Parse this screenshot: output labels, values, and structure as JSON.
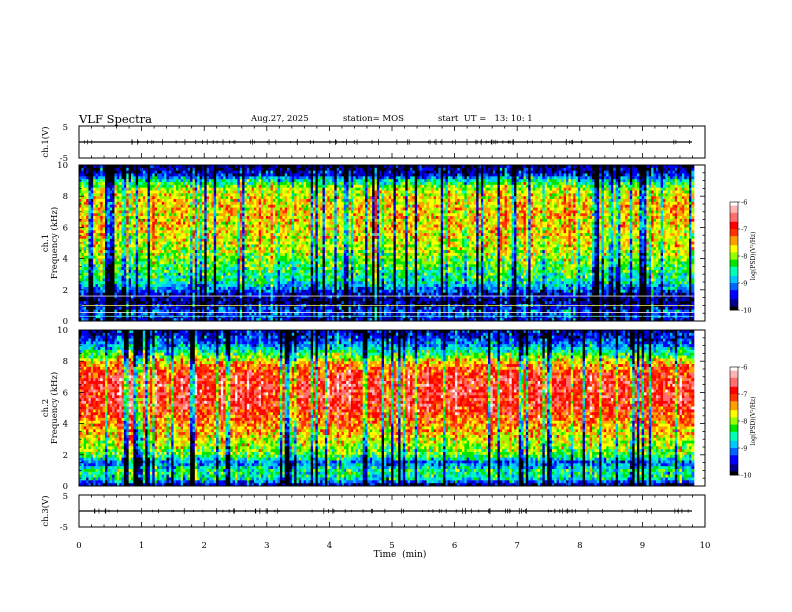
{
  "header": {
    "title": "VLF Spectra",
    "date": "Aug.27, 2025",
    "station": "station= MOS",
    "start_ut": "start  UT =   13: 10: 1"
  },
  "chart_data": [
    {
      "type": "line",
      "id": "ch1-voltage",
      "ylabel": "ch.1(V)",
      "ylim": [
        -5,
        5
      ],
      "y_ticks": [
        5,
        -5
      ],
      "baseline_value": 0,
      "x": [
        0,
        10
      ],
      "values": [
        0,
        0
      ]
    },
    {
      "type": "heatmap",
      "id": "ch1-spectrogram",
      "ylabel_channel": "ch.1",
      "ylabel": "Frequency (kHz)",
      "ylim": [
        0,
        10
      ],
      "y_ticks": [
        0,
        2,
        4,
        6,
        8,
        10
      ],
      "xlim": [
        0,
        10
      ],
      "data_end_min": 9.82,
      "colorbar": {
        "label": "log(PSD)(V²/Hz)",
        "range": [
          -10,
          -6
        ],
        "ticks": [
          -6,
          -7,
          -8,
          -9,
          -10
        ]
      },
      "mean_log_psd_profile": [
        {
          "f": 0.0,
          "v": -9.6
        },
        {
          "f": 0.6,
          "v": -9.2
        },
        {
          "f": 1.2,
          "v": -9.8
        },
        {
          "f": 1.8,
          "v": -9.4
        },
        {
          "f": 2.5,
          "v": -8.6
        },
        {
          "f": 3.5,
          "v": -8.3
        },
        {
          "f": 4.5,
          "v": -7.9
        },
        {
          "f": 5.5,
          "v": -7.7
        },
        {
          "f": 6.5,
          "v": -7.6
        },
        {
          "f": 7.5,
          "v": -7.6
        },
        {
          "f": 8.5,
          "v": -7.9
        },
        {
          "f": 9.0,
          "v": -8.6
        },
        {
          "f": 9.4,
          "v": -9.5
        },
        {
          "f": 10.0,
          "v": -9.9
        }
      ]
    },
    {
      "type": "heatmap",
      "id": "ch2-spectrogram",
      "ylabel_channel": "ch.2",
      "ylabel": "Frequency (kHz)",
      "ylim": [
        0,
        10
      ],
      "y_ticks": [
        0,
        2,
        4,
        6,
        8,
        10
      ],
      "xlim": [
        0,
        10
      ],
      "data_end_min": 9.82,
      "colorbar": {
        "label": "log(PSD)(V²/Hz)",
        "range": [
          -10,
          -6
        ],
        "ticks": [
          -6,
          -7,
          -8,
          -9,
          -10
        ]
      },
      "mean_log_psd_profile": [
        {
          "f": 0.0,
          "v": -9.9
        },
        {
          "f": 0.5,
          "v": -8.6
        },
        {
          "f": 1.0,
          "v": -8.5
        },
        {
          "f": 1.5,
          "v": -9.2
        },
        {
          "f": 2.0,
          "v": -8.2
        },
        {
          "f": 3.0,
          "v": -7.8
        },
        {
          "f": 4.0,
          "v": -7.4
        },
        {
          "f": 5.0,
          "v": -6.9
        },
        {
          "f": 6.0,
          "v": -6.8
        },
        {
          "f": 7.0,
          "v": -6.9
        },
        {
          "f": 7.8,
          "v": -7.4
        },
        {
          "f": 8.5,
          "v": -8.4
        },
        {
          "f": 9.2,
          "v": -9.2
        },
        {
          "f": 10.0,
          "v": -9.7
        }
      ]
    },
    {
      "type": "line",
      "id": "ch3-voltage",
      "ylabel": "ch.3(V)",
      "ylim": [
        -5,
        5
      ],
      "y_ticks": [
        5,
        -5
      ],
      "baseline_value": 0,
      "x": [
        0,
        10
      ],
      "values": [
        0,
        0
      ]
    }
  ],
  "x_axis": {
    "label": "Time  (min)",
    "range": [
      0,
      10
    ],
    "ticks": [
      0,
      1,
      2,
      3,
      4,
      5,
      6,
      7,
      8,
      9,
      10
    ]
  },
  "colors": {
    "colormap": [
      "#000000",
      "#00008c",
      "#0000ff",
      "#0064ff",
      "#00c8ff",
      "#00ffb4",
      "#00e600",
      "#96ff00",
      "#ffff00",
      "#ffa000",
      "#ff3200",
      "#ff0000",
      "#ff6e6e",
      "#ffb4b4",
      "#ffffff"
    ],
    "axis": "#000000",
    "trace": "#000000"
  }
}
